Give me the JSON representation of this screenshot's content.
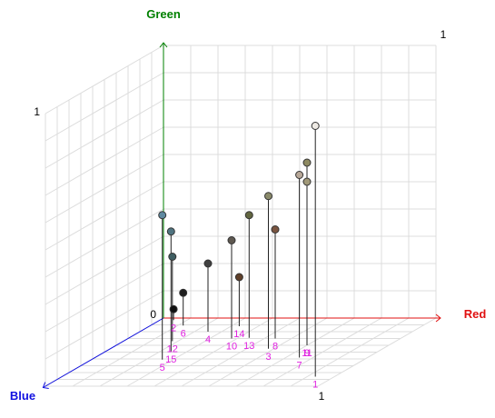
{
  "chart_data": {
    "type": "scatter",
    "projection": "3d",
    "title": "",
    "axes": {
      "x": {
        "label": "Red",
        "color": "#e01010",
        "range": [
          0,
          1
        ],
        "tick_labels": [
          "0",
          "1"
        ]
      },
      "y": {
        "label": "Green",
        "color": "#008000",
        "range": [
          0,
          1
        ],
        "tick_labels": [
          "0",
          "1"
        ]
      },
      "z": {
        "label": "Blue",
        "color": "#1010e0",
        "range": [
          0,
          1
        ],
        "tick_labels": [
          "1"
        ]
      }
    },
    "origin_label": "0",
    "grid": true,
    "drop_lines": true,
    "label_color": "#e020e0",
    "points": [
      {
        "label": "1",
        "red": 0.93,
        "green": 0.92,
        "blue": 0.86,
        "color": "#eeeae4"
      },
      {
        "label": "2",
        "red": 0.05,
        "green": 0.04,
        "blue": 0.03,
        "color": "#101010"
      },
      {
        "label": "3",
        "red": 0.58,
        "green": 0.56,
        "blue": 0.45,
        "color": "#8a8a6a"
      },
      {
        "label": "4",
        "red": 0.25,
        "green": 0.25,
        "blue": 0.2,
        "color": "#404040"
      },
      {
        "label": "5",
        "red": 0.26,
        "green": 0.53,
        "blue": 0.61,
        "color": "#5f8aa0"
      },
      {
        "label": "6",
        "red": 0.12,
        "green": 0.12,
        "blue": 0.11,
        "color": "#1e1e1e"
      },
      {
        "label": "7",
        "red": 0.75,
        "green": 0.67,
        "blue": 0.58,
        "color": "#b8a898"
      },
      {
        "label": "8",
        "red": 0.54,
        "green": 0.4,
        "blue": 0.3,
        "color": "#7a5540"
      },
      {
        "label": "9",
        "red": 0.7,
        "green": 0.6,
        "blue": 0.4,
        "color": "#a09878"
      },
      {
        "label": "10",
        "red": 0.38,
        "green": 0.36,
        "blue": 0.3,
        "color": "#5e5850"
      },
      {
        "label": "11",
        "red": 0.7,
        "green": 0.67,
        "blue": 0.4,
        "color": "#8e8a62"
      },
      {
        "label": "12",
        "red": 0.18,
        "green": 0.31,
        "blue": 0.34,
        "color": "#3f5e62"
      },
      {
        "label": "13",
        "red": 0.44,
        "green": 0.45,
        "blue": 0.29,
        "color": "#626640"
      },
      {
        "label": "14",
        "red": 0.33,
        "green": 0.18,
        "blue": 0.12,
        "color": "#60402a"
      },
      {
        "label": "15",
        "red": 0.24,
        "green": 0.44,
        "blue": 0.49,
        "color": "#4f7480"
      }
    ]
  }
}
